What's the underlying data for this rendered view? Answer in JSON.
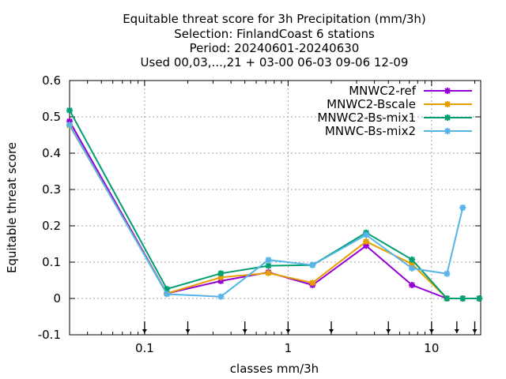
{
  "title_lines": [
    "Equitable threat score  for 3h Precipitation (mm/3h)",
    "Selection: FinlandCoast       6 stations",
    "Period: 20240601-20240630",
    "Used 00,03,...,21 + 03-00 06-03 09-06 12-09"
  ],
  "chart_data": {
    "type": "line",
    "xlabel": "classes mm/3h",
    "ylabel": "Equitable threat score",
    "x_scale": "log",
    "xlim": [
      0.03,
      22
    ],
    "ylim": [
      -0.1,
      0.6
    ],
    "xticks": [
      {
        "v": 0.1,
        "label": "0.1"
      },
      {
        "v": 1,
        "label": "1"
      },
      {
        "v": 10,
        "label": "10"
      }
    ],
    "yticks": [
      {
        "v": -0.1,
        "label": "-0.1"
      },
      {
        "v": 0,
        "label": "0"
      },
      {
        "v": 0.1,
        "label": "0.1"
      },
      {
        "v": 0.2,
        "label": "0.2"
      },
      {
        "v": 0.3,
        "label": "0.3"
      },
      {
        "v": 0.4,
        "label": "0.4"
      },
      {
        "v": 0.5,
        "label": "0.5"
      },
      {
        "v": 0.6,
        "label": "0.6"
      }
    ],
    "grid": true,
    "legend_position": "top-right",
    "threshold_arrows_x": [
      0.1,
      0.2,
      0.5,
      1,
      2,
      5,
      10,
      15,
      20
    ],
    "series": [
      {
        "name": "MNWC2-ref",
        "color": "#9400d3",
        "marker": "plus-star",
        "x": [
          0.03,
          0.143,
          0.34,
          0.73,
          1.48,
          3.5,
          7.3,
          12.8,
          16.5,
          21.5
        ],
        "y": [
          0.488,
          0.014,
          0.048,
          0.072,
          0.037,
          0.145,
          0.037,
          0.0,
          0.0,
          0.0
        ]
      },
      {
        "name": "MNWC2-Bscale",
        "color": "#e69f00",
        "marker": "plus-star",
        "x": [
          0.03,
          0.143,
          0.34,
          0.73,
          1.48,
          3.5,
          7.3,
          12.8,
          16.5,
          21.5
        ],
        "y": [
          0.476,
          0.014,
          0.058,
          0.07,
          0.043,
          0.157,
          0.095,
          0.0,
          0.0,
          0.0
        ]
      },
      {
        "name": "MNWC2-Bs-mix1",
        "color": "#009e73",
        "marker": "plus-star",
        "x": [
          0.03,
          0.143,
          0.34,
          0.73,
          1.48,
          3.5,
          7.3,
          12.8,
          16.5,
          21.5
        ],
        "y": [
          0.518,
          0.026,
          0.069,
          0.09,
          0.092,
          0.181,
          0.107,
          0.0,
          0.0,
          0.0
        ]
      },
      {
        "name": "MNWC-Bs-mix2",
        "color": "#56b4e9",
        "marker": "plus-star",
        "x": [
          0.03,
          0.143,
          0.34,
          0.73,
          1.48,
          3.5,
          7.3,
          12.8,
          16.5
        ],
        "y": [
          0.478,
          0.012,
          0.005,
          0.106,
          0.092,
          0.175,
          0.083,
          0.068,
          0.25
        ]
      }
    ]
  }
}
